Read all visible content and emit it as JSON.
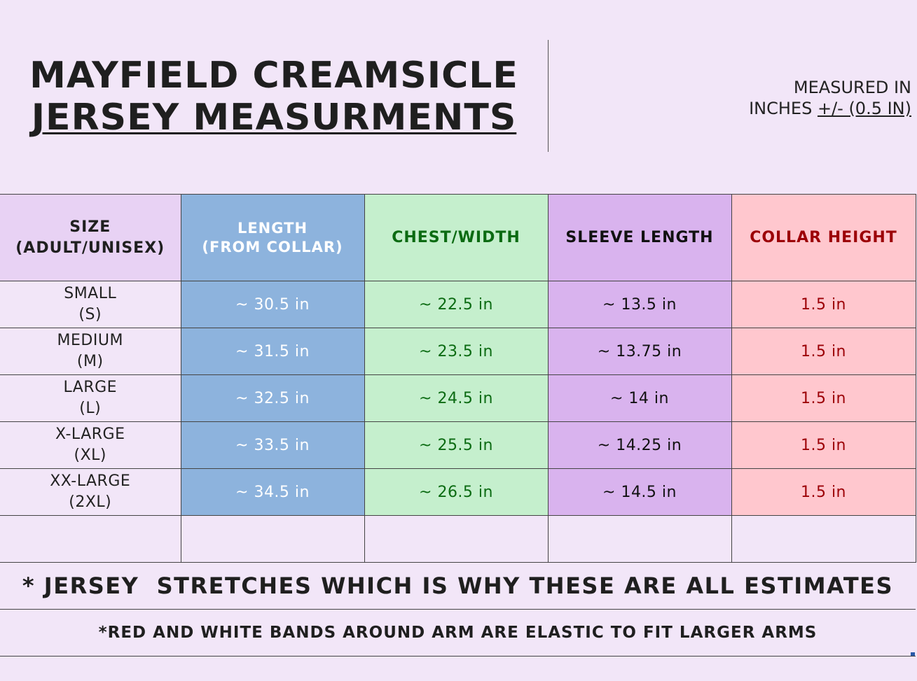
{
  "title": {
    "line1": "MAYFIELD CREAMSICLE",
    "line2": "JERSEY MEASURMENTS"
  },
  "measure_note": {
    "line1": "MEASURED IN",
    "line2_prefix": "INCHES ",
    "tolerance": "+/- (0.5 IN)"
  },
  "table": {
    "headers": {
      "size": [
        "SIZE",
        "(ADULT/UNISEX)"
      ],
      "length": [
        "LENGTH",
        "(FROM COLLAR)"
      ],
      "chest": "CHEST/WIDTH",
      "sleeve": "SLEEVE LENGTH",
      "collar": "COLLAR HEIGHT"
    },
    "rows": [
      {
        "size_name": "SMALL",
        "size_code": "(S)",
        "length": "~ 30.5 in",
        "chest": "~ 22.5 in",
        "sleeve": "~ 13.5 in",
        "collar": "1.5 in"
      },
      {
        "size_name": "MEDIUM",
        "size_code": "(M)",
        "length": "~ 31.5 in",
        "chest": "~ 23.5 in",
        "sleeve": "~ 13.75 in",
        "collar": "1.5 in"
      },
      {
        "size_name": "LARGE",
        "size_code": "(L)",
        "length": "~ 32.5 in",
        "chest": "~ 24.5 in",
        "sleeve": "~ 14 in",
        "collar": "1.5 in"
      },
      {
        "size_name": "X-LARGE",
        "size_code": "(XL)",
        "length": "~ 33.5 in",
        "chest": "~ 25.5 in",
        "sleeve": "~ 14.25 in",
        "collar": "1.5 in"
      },
      {
        "size_name": "XX-LARGE",
        "size_code": "(2XL)",
        "length": "~ 34.5 in",
        "chest": "~ 26.5 in",
        "sleeve": "~ 14.5 in",
        "collar": "1.5 in"
      }
    ]
  },
  "notes": {
    "stretch": "* JERSEY  STRETCHES WHICH IS WHY THESE ARE ALL ESTIMATES",
    "bands": "*RED AND WHITE BANDS AROUND ARM ARE ELASTIC TO FIT LARGER ARMS"
  },
  "colors": {
    "page_bg": "#f2e6f8",
    "size_header": "#e8d2f4",
    "length": "#8db3dd",
    "chest": "#c5efcd",
    "chest_text": "#0b6b12",
    "sleeve": "#d9b3ee",
    "collar": "#ffc7ce",
    "collar_text": "#9c0006"
  }
}
